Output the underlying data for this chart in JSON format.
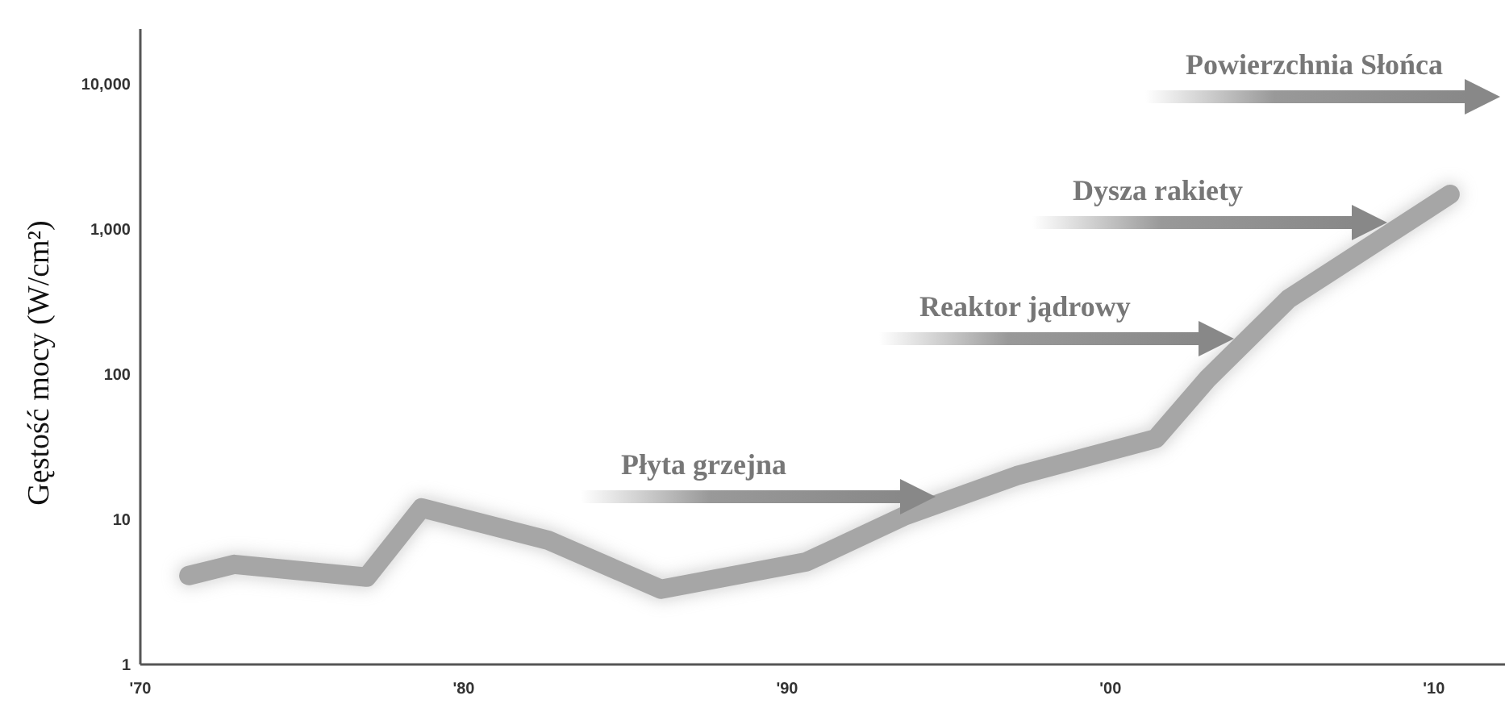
{
  "chart_data": {
    "type": "line",
    "ylabel": "Gęstość mocy (W/cm²)",
    "log": true,
    "xlim": [
      1970,
      2012.2
    ],
    "ylim": [
      1,
      24000
    ],
    "xticks": [
      {
        "value": 1970,
        "label": "'70"
      },
      {
        "value": 1980,
        "label": "'80"
      },
      {
        "value": 1990,
        "label": "'90"
      },
      {
        "value": 2000,
        "label": "'00"
      },
      {
        "value": 2010,
        "label": "'10"
      }
    ],
    "yticks": [
      1,
      10,
      100,
      {
        "value": 1000,
        "label": "1,000"
      },
      {
        "value": 10000,
        "label": "10,000"
      }
    ],
    "series": [
      {
        "color": "#a6a6a6",
        "x": [
          1971.5,
          1972.9,
          1977,
          1978.7,
          1982.6,
          1986.1,
          1990.6,
          1993.6,
          1997.1,
          2001.4,
          2003,
          2005.5,
          2010.5
        ],
        "values": [
          4.1,
          4.9,
          4,
          12,
          7.2,
          3.3,
          5.1,
          10.5,
          20,
          36,
          93,
          330,
          1740
        ]
      }
    ],
    "annotations": [
      "Płyta grzejna",
      "Reaktor jądrowy",
      "Dysza rakiety",
      "Powierzchnia Słońca"
    ]
  }
}
